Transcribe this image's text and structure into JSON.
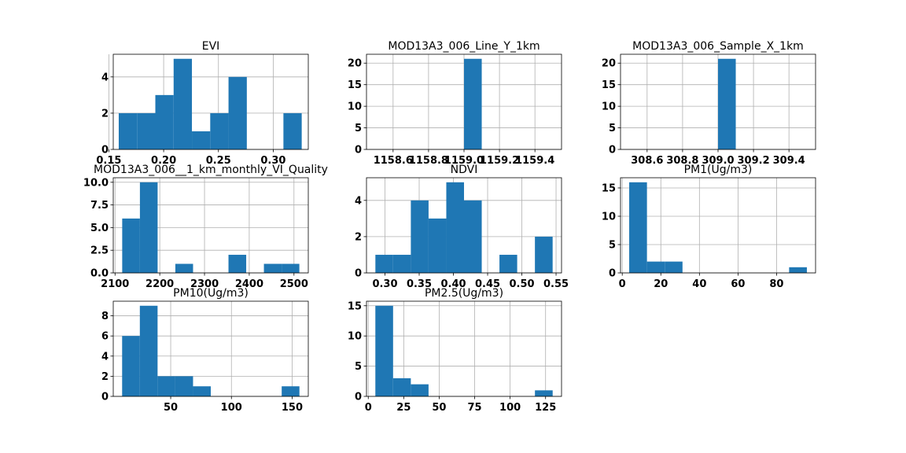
{
  "chart_data": [
    {
      "type": "bar",
      "title": "EVI",
      "xlabel": "",
      "ylabel": "",
      "bin_edges": [
        0.159,
        0.1757,
        0.1924,
        0.2091,
        0.2258,
        0.2425,
        0.2592,
        0.2759,
        0.2926,
        0.3093,
        0.326
      ],
      "values": [
        2,
        2,
        3,
        5,
        1,
        2,
        4,
        0,
        0,
        2
      ],
      "xlim": [
        0.154,
        0.332
      ],
      "ylim": [
        0,
        5.25
      ],
      "xticks": [
        0.15,
        0.2,
        0.25,
        0.3
      ],
      "xtick_labels": [
        "0.15",
        "0.20",
        "0.25",
        "0.30"
      ],
      "yticks": [
        0,
        2,
        4
      ],
      "ytick_labels": [
        "0",
        "2",
        "4"
      ],
      "grid": true
    },
    {
      "type": "bar",
      "title": "MOD13A3_006_Line_Y_1km",
      "xlabel": "",
      "ylabel": "",
      "bin_edges": [
        1158.5,
        1158.6,
        1158.7,
        1158.8,
        1158.9,
        1159.0,
        1159.1,
        1159.2,
        1159.3,
        1159.4,
        1159.5
      ],
      "values": [
        0,
        0,
        0,
        0,
        0,
        21,
        0,
        0,
        0,
        0
      ],
      "xlim": [
        1158.45,
        1159.55
      ],
      "ylim": [
        0,
        22.05
      ],
      "xticks": [
        1158.6,
        1158.8,
        1159.0,
        1159.2,
        1159.4
      ],
      "xtick_labels": [
        "1158.6",
        "1158.8",
        "1159.0",
        "1159.2",
        "1159.4"
      ],
      "x_offset_labels": [
        "1",
        "1",
        "1"
      ],
      "yticks": [
        0,
        5,
        10,
        15,
        20
      ],
      "ytick_labels": [
        "0",
        "5",
        "10",
        "15",
        "20"
      ],
      "grid": true
    },
    {
      "type": "bar",
      "title": "MOD13A3_006_Sample_X_1km",
      "xlabel": "",
      "ylabel": "",
      "bin_edges": [
        308.5,
        308.6,
        308.7,
        308.8,
        308.9,
        309.0,
        309.1,
        309.2,
        309.3,
        309.4,
        309.5
      ],
      "values": [
        0,
        0,
        0,
        0,
        0,
        21,
        0,
        0,
        0,
        0
      ],
      "xlim": [
        308.45,
        309.55
      ],
      "ylim": [
        0,
        22.05
      ],
      "xticks": [
        308.6,
        308.8,
        309.0,
        309.2,
        309.4
      ],
      "xtick_labels": [
        "308.6",
        "308.8",
        "309.0",
        "309.2",
        "309.4"
      ],
      "yticks": [
        0,
        5,
        10,
        15,
        20
      ],
      "ytick_labels": [
        "0",
        "5",
        "10",
        "15",
        "20"
      ],
      "grid": true
    },
    {
      "type": "bar",
      "title": "MOD13A3_006__1_km_monthly_VI_Quality",
      "xlabel": "",
      "ylabel": "",
      "bin_edges": [
        2116,
        2155.6,
        2195.2,
        2234.8,
        2274.4,
        2314,
        2353.6,
        2393.2,
        2432.8,
        2472.4,
        2512
      ],
      "values": [
        6,
        10,
        0,
        1,
        0,
        0,
        2,
        0,
        1,
        1
      ],
      "xlim": [
        2096,
        2532
      ],
      "ylim": [
        0,
        10.5
      ],
      "xticks": [
        2100,
        2200,
        2300,
        2400,
        2500
      ],
      "xtick_labels": [
        "2100",
        "2200",
        "2300",
        "2400",
        "2500"
      ],
      "yticks": [
        0,
        2.5,
        5,
        7.5,
        10
      ],
      "ytick_labels": [
        "0.0",
        "2.5",
        "5.0",
        "7.5",
        "10.0"
      ],
      "grid": true
    },
    {
      "type": "bar",
      "title": "NDVI",
      "xlabel": "",
      "ylabel": "",
      "bin_edges": [
        0.286,
        0.3119,
        0.3378,
        0.3637,
        0.3896,
        0.4155,
        0.4414,
        0.4673,
        0.4932,
        0.5191,
        0.545
      ],
      "values": [
        1,
        1,
        4,
        3,
        5,
        4,
        0,
        1,
        0,
        2
      ],
      "xlim": [
        0.273,
        0.558
      ],
      "ylim": [
        0,
        5.25
      ],
      "xticks": [
        0.3,
        0.35,
        0.4,
        0.45,
        0.5,
        0.55
      ],
      "xtick_labels": [
        "0.30",
        "0.35",
        "0.40",
        "0.45",
        "0.50",
        "0.55"
      ],
      "yticks": [
        0,
        2,
        4
      ],
      "ytick_labels": [
        "0",
        "2",
        "4"
      ],
      "grid": true
    },
    {
      "type": "bar",
      "title": "PM1(Ug/m3)",
      "xlabel": "",
      "ylabel": "",
      "bin_edges": [
        3.6,
        12.81,
        22.02,
        31.23,
        40.44,
        49.65,
        58.86,
        68.07,
        77.28,
        86.49,
        95.7
      ],
      "values": [
        16,
        2,
        2,
        0,
        0,
        0,
        0,
        0,
        0,
        1
      ],
      "xlim": [
        -0.9,
        100.2
      ],
      "ylim": [
        0,
        16.8
      ],
      "xticks": [
        0,
        20,
        40,
        60,
        80
      ],
      "xtick_labels": [
        "0",
        "20",
        "40",
        "60",
        "80"
      ],
      "yticks": [
        0,
        5,
        10,
        15
      ],
      "ytick_labels": [
        "0",
        "5",
        "10",
        "15"
      ],
      "grid": true
    },
    {
      "type": "bar",
      "title": "PM10(Ug/m3)",
      "xlabel": "",
      "ylabel": "",
      "bin_edges": [
        10,
        24.6,
        39.2,
        53.8,
        68.4,
        83,
        97.6,
        112.2,
        126.8,
        141.4,
        156
      ],
      "values": [
        6,
        9,
        2,
        2,
        1,
        0,
        0,
        0,
        0,
        1
      ],
      "xlim": [
        2.7,
        163.3
      ],
      "ylim": [
        0,
        9.45
      ],
      "xticks": [
        50,
        100,
        150
      ],
      "xtick_labels": [
        "50",
        "100",
        "150"
      ],
      "yticks": [
        0,
        2,
        4,
        6,
        8
      ],
      "ytick_labels": [
        "0",
        "2",
        "4",
        "6",
        "8"
      ],
      "grid": true
    },
    {
      "type": "bar",
      "title": "PM2.5(Ug/m3)",
      "xlabel": "",
      "ylabel": "",
      "bin_edges": [
        5,
        17.5,
        30,
        42.5,
        55,
        67.5,
        80,
        92.5,
        105,
        117.5,
        130
      ],
      "values": [
        15,
        3,
        2,
        0,
        0,
        0,
        0,
        0,
        0,
        1
      ],
      "xlim": [
        -1.25,
        136.25
      ],
      "ylim": [
        0,
        15.75
      ],
      "xticks": [
        0,
        25,
        50,
        75,
        100,
        125
      ],
      "xtick_labels": [
        "0",
        "25",
        "50",
        "75",
        "100",
        "125"
      ],
      "yticks": [
        0,
        5,
        10,
        15
      ],
      "ytick_labels": [
        "0",
        "5",
        "10",
        "15"
      ],
      "grid": true
    }
  ]
}
